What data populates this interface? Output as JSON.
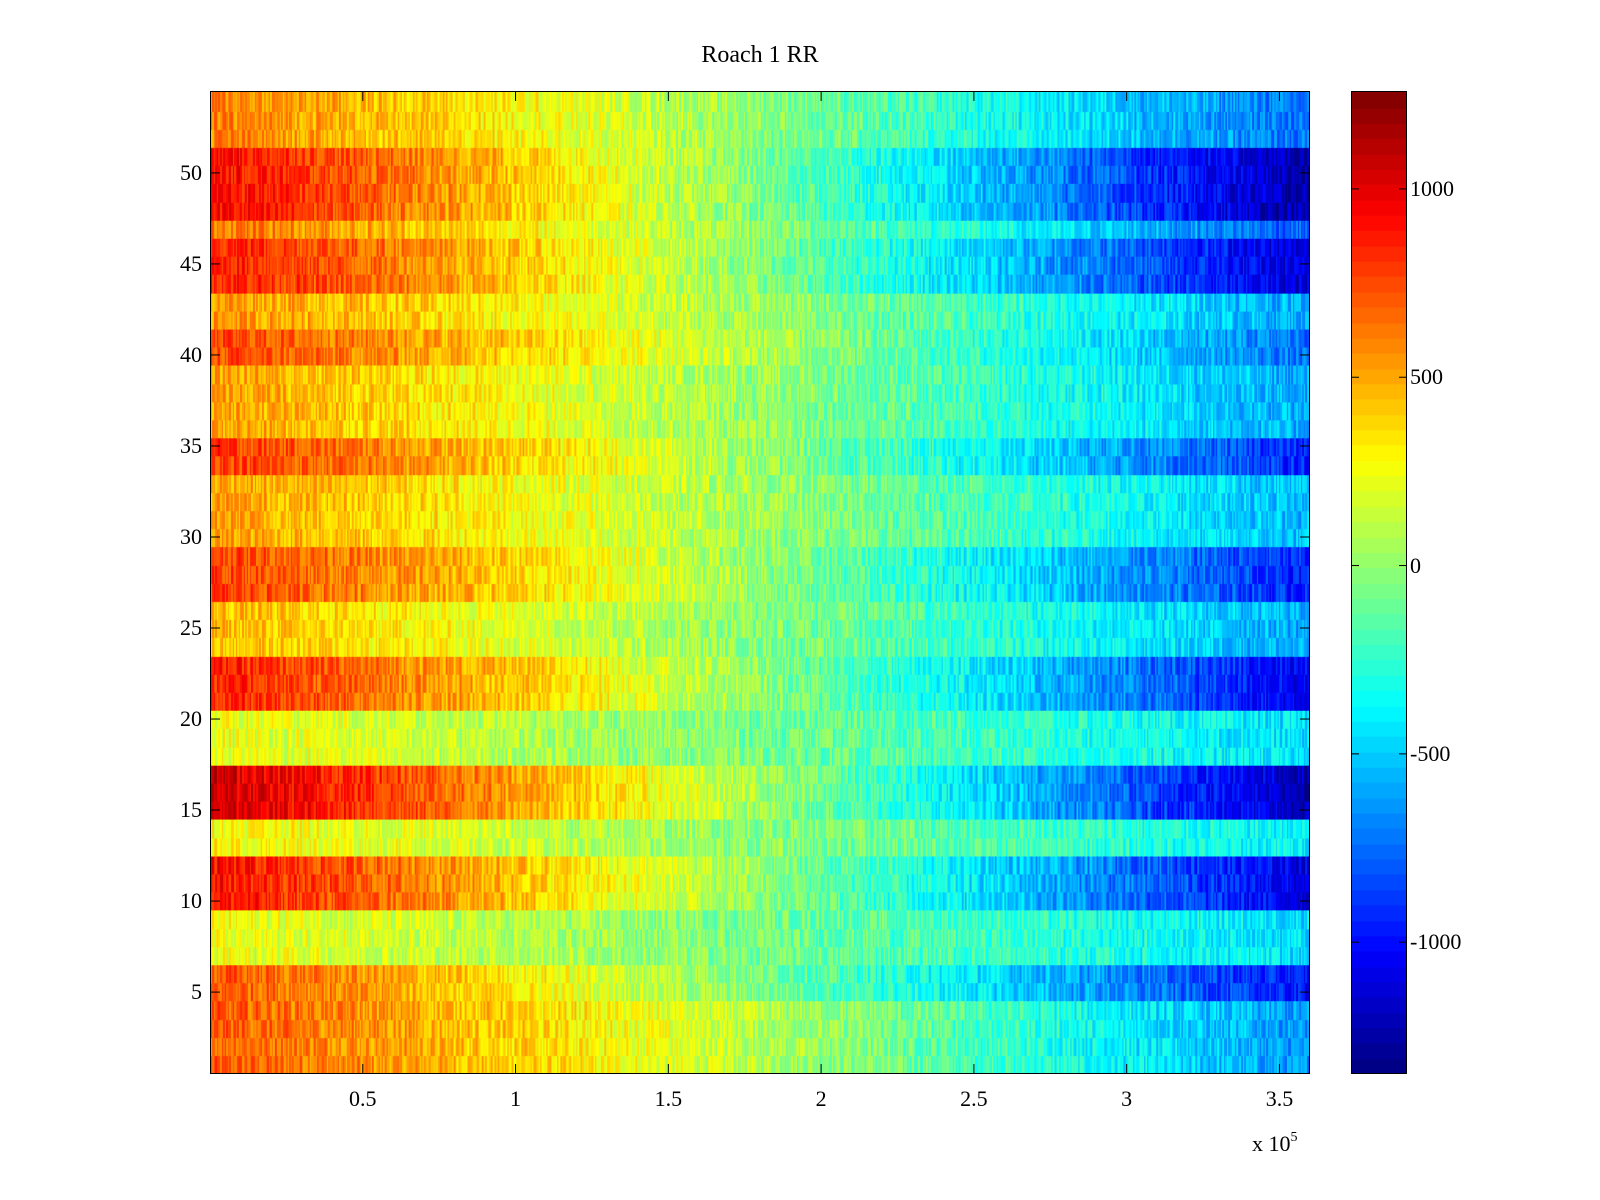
{
  "chart_data": {
    "type": "heatmap",
    "title": "Roach 1 RR",
    "xlabel": "",
    "ylabel": "",
    "x_exponent_label": "x 10",
    "x_exponent": "5",
    "xlim": [
      0,
      360000
    ],
    "ylim": [
      0.5,
      54.5
    ],
    "x_ticks": [
      {
        "value": 50000,
        "label": "0.5"
      },
      {
        "value": 100000,
        "label": "1"
      },
      {
        "value": 150000,
        "label": "1.5"
      },
      {
        "value": 200000,
        "label": "2"
      },
      {
        "value": 250000,
        "label": "2.5"
      },
      {
        "value": 300000,
        "label": "3"
      },
      {
        "value": 350000,
        "label": "3.5"
      }
    ],
    "y_ticks": [
      {
        "value": 5,
        "label": "5"
      },
      {
        "value": 10,
        "label": "10"
      },
      {
        "value": 15,
        "label": "15"
      },
      {
        "value": 20,
        "label": "20"
      },
      {
        "value": 25,
        "label": "25"
      },
      {
        "value": 30,
        "label": "30"
      },
      {
        "value": 35,
        "label": "35"
      },
      {
        "value": 40,
        "label": "40"
      },
      {
        "value": 45,
        "label": "45"
      },
      {
        "value": 50,
        "label": "50"
      }
    ],
    "rows": 54,
    "colorbar": {
      "colormap": "jet",
      "clim": [
        -1350,
        1260
      ],
      "ticks": [
        {
          "value": 1000,
          "label": "1000"
        },
        {
          "value": 500,
          "label": "500"
        },
        {
          "value": 0,
          "label": "0"
        },
        {
          "value": -500,
          "label": "-500"
        },
        {
          "value": -1000,
          "label": "-1000"
        }
      ]
    },
    "row_profile": {
      "description_rows": "approximate left-edge (x≈0) and right-edge (x≈3.6e5) values per row band",
      "bands": [
        {
          "rows": [
            1,
            4
          ],
          "left": 700,
          "right": -650
        },
        {
          "rows": [
            5,
            6
          ],
          "left": 720,
          "right": -1000
        },
        {
          "rows": [
            7,
            9
          ],
          "left": 250,
          "right": -450
        },
        {
          "rows": [
            10,
            12
          ],
          "left": 900,
          "right": -1100
        },
        {
          "rows": [
            13,
            14
          ],
          "left": 300,
          "right": -400
        },
        {
          "rows": [
            15,
            17
          ],
          "left": 1050,
          "right": -1200
        },
        {
          "rows": [
            18,
            20
          ],
          "left": 250,
          "right": -450
        },
        {
          "rows": [
            21,
            23
          ],
          "left": 850,
          "right": -1050
        },
        {
          "rows": [
            24,
            26
          ],
          "left": 450,
          "right": -600
        },
        {
          "rows": [
            27,
            29
          ],
          "left": 780,
          "right": -950
        },
        {
          "rows": [
            30,
            33
          ],
          "left": 520,
          "right": -550
        },
        {
          "rows": [
            34,
            35
          ],
          "left": 800,
          "right": -950
        },
        {
          "rows": [
            36,
            39
          ],
          "left": 520,
          "right": -600
        },
        {
          "rows": [
            40,
            41
          ],
          "left": 750,
          "right": -750
        },
        {
          "rows": [
            42,
            43
          ],
          "left": 550,
          "right": -600
        },
        {
          "rows": [
            44,
            46
          ],
          "left": 880,
          "right": -1150
        },
        {
          "rows": [
            47,
            47
          ],
          "left": 650,
          "right": -800
        },
        {
          "rows": [
            48,
            51
          ],
          "left": 920,
          "right": -1250
        },
        {
          "rows": [
            52,
            54
          ],
          "left": 600,
          "right": -750
        }
      ]
    }
  }
}
